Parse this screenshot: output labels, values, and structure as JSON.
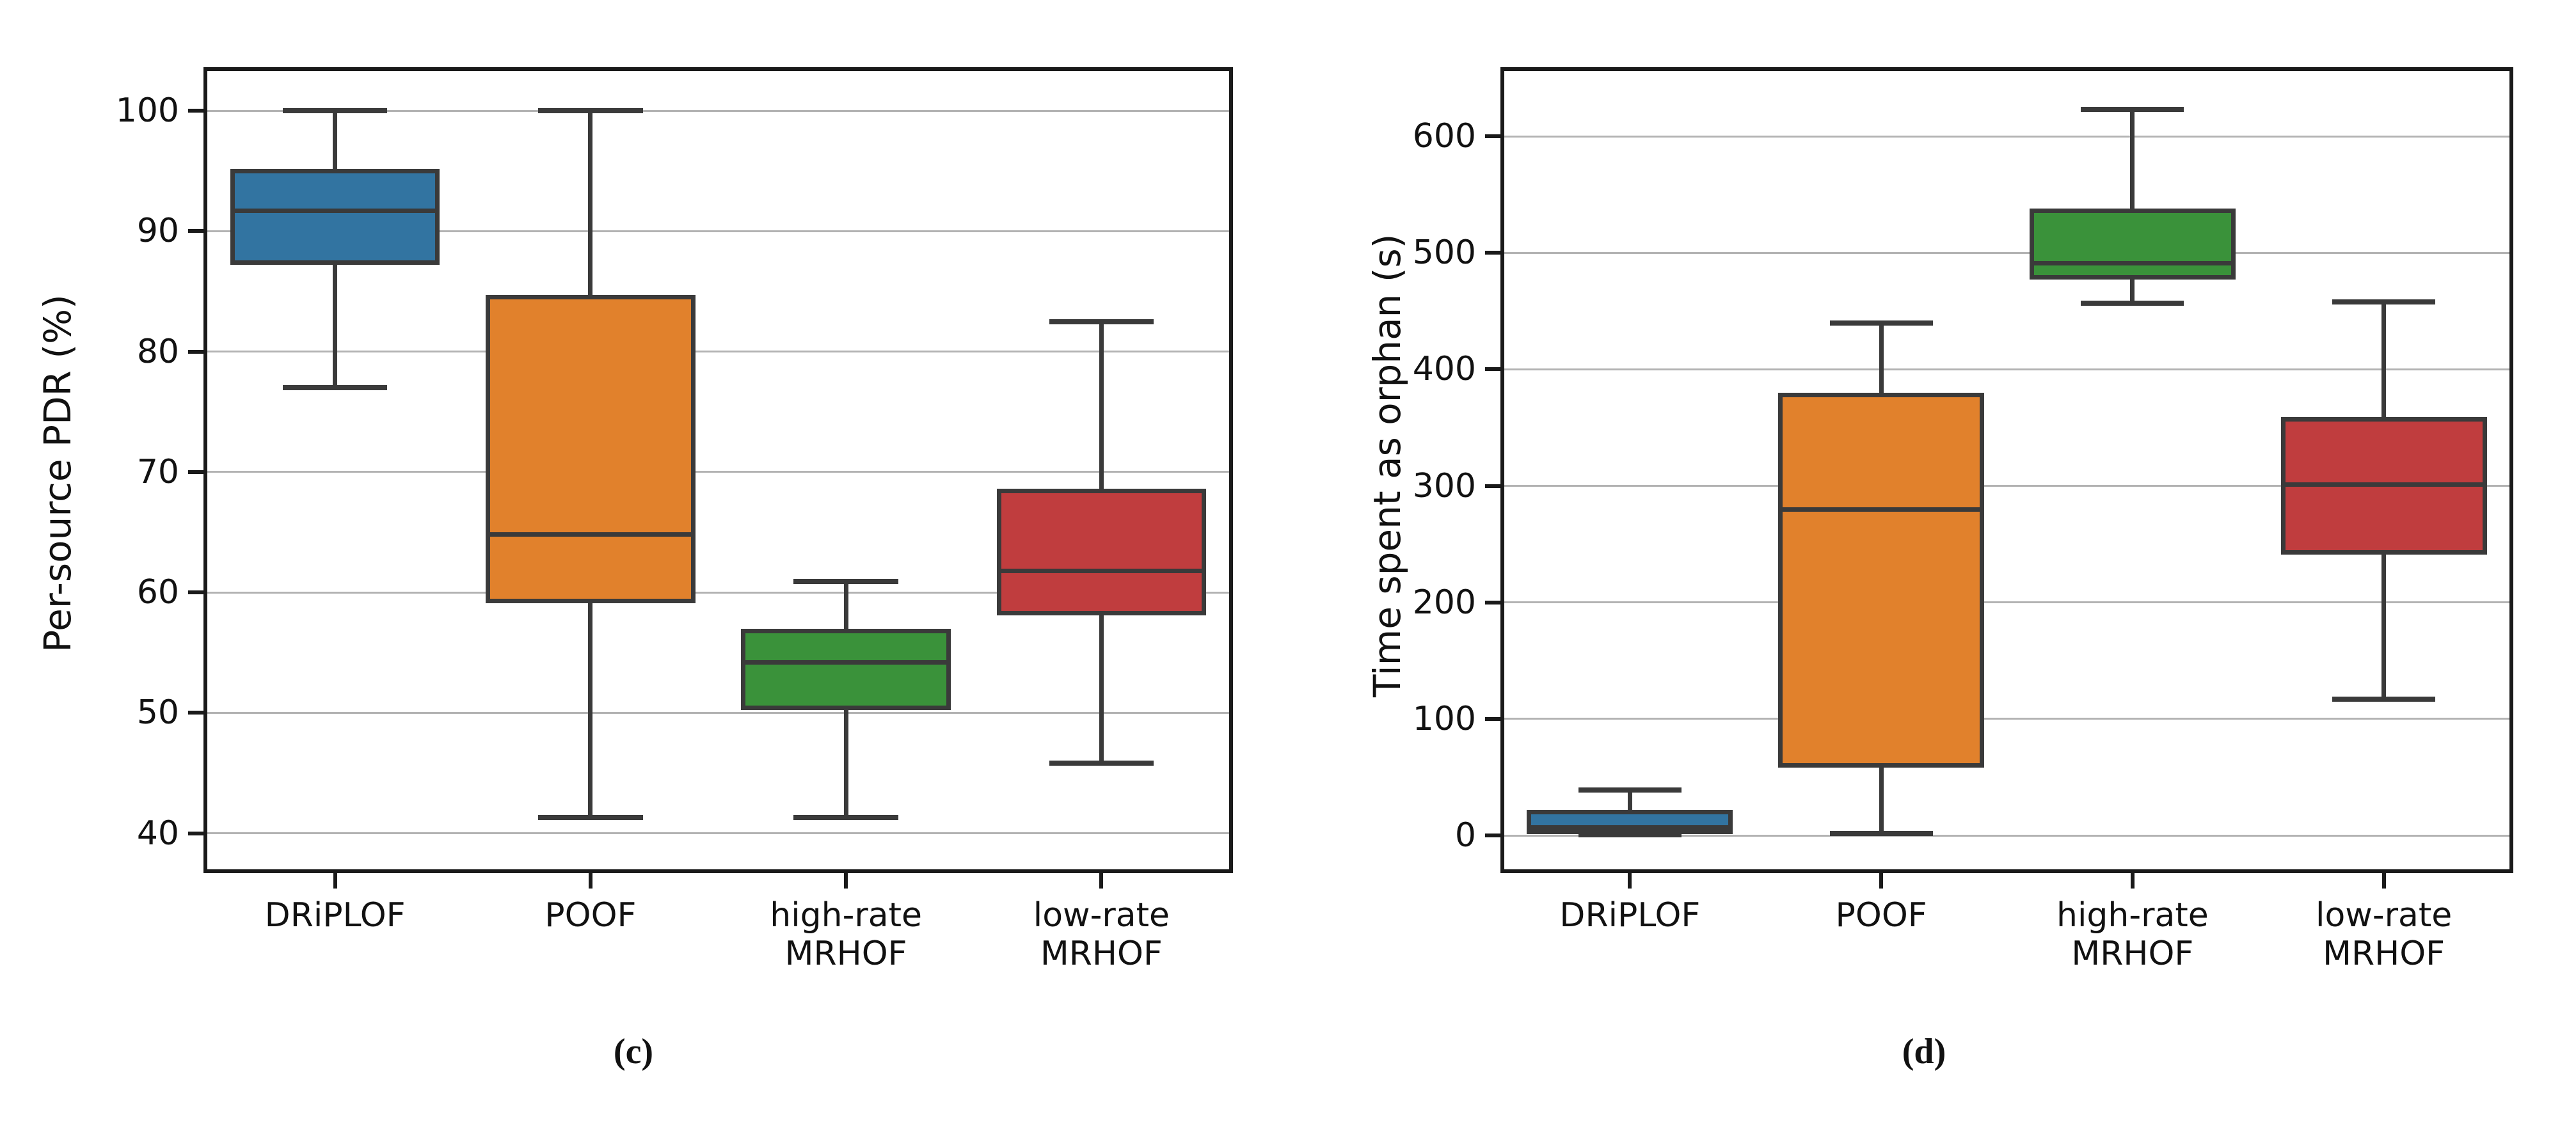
{
  "figure": {
    "background": "#ffffff",
    "captions": {
      "left": "(c)",
      "right": "(d)"
    }
  },
  "style": {
    "box_edge_color": "#3a3a3a",
    "grid_color": "#b3b3b3",
    "spine_color": "#1a1a1a",
    "text_color": "#111111",
    "series_colors": {
      "blue": "#3274a1",
      "orange": "#e1812c",
      "green": "#3a923a",
      "red": "#c03d3e"
    }
  },
  "chart_data": [
    {
      "type": "box",
      "caption": "(c)",
      "ylabel": "Per-source PDR (%)",
      "xlabel": "",
      "grid": true,
      "yticks": [
        40,
        50,
        60,
        70,
        80,
        90,
        100
      ],
      "ylim": [
        37,
        103.3
      ],
      "categories": [
        [
          "DRiPLOF"
        ],
        [
          "POOF"
        ],
        [
          "high-rate",
          "MRHOF"
        ],
        [
          "low-rate",
          "MRHOF"
        ]
      ],
      "series": [
        {
          "name": "DRiPLOF",
          "color": "#3274a1",
          "whislo": 77.0,
          "q1": 87.4,
          "med": 91.7,
          "q3": 95.0,
          "whishi": 100.0
        },
        {
          "name": "POOF",
          "color": "#e1812c",
          "whislo": 41.3,
          "q1": 59.3,
          "med": 64.8,
          "q3": 84.5,
          "whishi": 100.0
        },
        {
          "name": "high-rate MRHOF",
          "color": "#3a923a",
          "whislo": 41.3,
          "q1": 50.4,
          "med": 54.2,
          "q3": 56.8,
          "whishi": 60.9
        },
        {
          "name": "low-rate MRHOF",
          "color": "#c03d3e",
          "whislo": 45.8,
          "q1": 58.3,
          "med": 61.8,
          "q3": 68.4,
          "whishi": 82.5
        }
      ]
    },
    {
      "type": "box",
      "caption": "(d)",
      "ylabel": "Time spent as orphan (s)",
      "xlabel": "",
      "grid": true,
      "yticks": [
        0,
        100,
        200,
        300,
        400,
        500,
        600
      ],
      "ylim": [
        -29,
        656
      ],
      "categories": [
        [
          "DRiPLOF"
        ],
        [
          "POOF"
        ],
        [
          "high-rate",
          "MRHOF"
        ],
        [
          "low-rate",
          "MRHOF"
        ]
      ],
      "series": [
        {
          "name": "DRiPLOF",
          "color": "#3274a1",
          "whislo": 0.5,
          "q1": 3,
          "med": 7,
          "q3": 20,
          "whishi": 39
        },
        {
          "name": "POOF",
          "color": "#e1812c",
          "whislo": 2,
          "q1": 60,
          "med": 280,
          "q3": 378,
          "whishi": 440
        },
        {
          "name": "high-rate MRHOF",
          "color": "#3a923a",
          "whislo": 457,
          "q1": 479,
          "med": 491,
          "q3": 536,
          "whishi": 623
        },
        {
          "name": "low-rate MRHOF",
          "color": "#c03d3e",
          "whislo": 117,
          "q1": 243,
          "med": 301,
          "q3": 357,
          "whishi": 458
        }
      ]
    }
  ]
}
